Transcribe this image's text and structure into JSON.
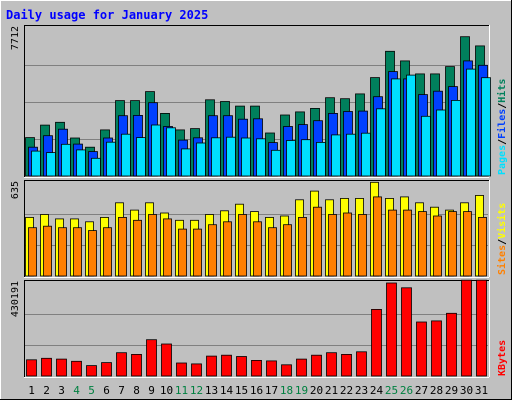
{
  "title": "Daily usage for January 2025",
  "colors": {
    "background": "#c0c0c0",
    "panel": "#c0c0c0",
    "title": "#0000ff",
    "hits": "#00805c",
    "files": "#0040ff",
    "pages": "#00e0ff",
    "visits": "#ffff00",
    "sites": "#ff8000",
    "kbytes": "#ff0000",
    "weekend_label": "#008040",
    "weekday_label": "#000000"
  },
  "chart_data": [
    {
      "type": "bar",
      "panel": "hits-files-pages",
      "max_label": "7712",
      "ymax": 7712,
      "legend": [
        {
          "text": "Pages",
          "key": "pages"
        },
        {
          "text": "/",
          "key": "sep"
        },
        {
          "text": "Files",
          "key": "files"
        },
        {
          "text": "/",
          "key": "sep"
        },
        {
          "text": "Hits",
          "key": "hits"
        }
      ],
      "series": [
        {
          "name": "Hits",
          "key": "hits",
          "values": [
            2000,
            2650,
            2800,
            1980,
            1500,
            2400,
            3930,
            3930,
            4400,
            3260,
            2400,
            2470,
            3970,
            3880,
            3640,
            3640,
            2240,
            3180,
            3340,
            3520,
            4080,
            4030,
            4280,
            5130,
            6500,
            6000,
            5320,
            5320,
            5700,
            7260,
            6780
          ]
        },
        {
          "name": "Files",
          "key": "files",
          "values": [
            1500,
            2100,
            2440,
            1660,
            1270,
            1980,
            3140,
            3160,
            3820,
            2580,
            1870,
            1990,
            3140,
            3140,
            2960,
            2980,
            1740,
            2580,
            2680,
            2880,
            3260,
            3360,
            3380,
            4130,
            5440,
            5060,
            4240,
            4420,
            4660,
            6000,
            5770
          ]
        },
        {
          "name": "Pages",
          "key": "pages",
          "values": [
            1300,
            1220,
            1650,
            1360,
            920,
            1760,
            2180,
            2000,
            2660,
            2510,
            1410,
            1720,
            1990,
            2020,
            1980,
            1940,
            1340,
            1850,
            1890,
            1750,
            2140,
            2180,
            2230,
            3500,
            5060,
            5260,
            3110,
            3440,
            3940,
            5570,
            5120
          ]
        }
      ]
    },
    {
      "type": "bar",
      "panel": "visits-sites",
      "max_label": "635",
      "ymax": 635,
      "legend": [
        {
          "text": "Sites",
          "key": "sites"
        },
        {
          "text": "/",
          "key": "sep"
        },
        {
          "text": "Visits",
          "key": "visits"
        }
      ],
      "series": [
        {
          "name": "Visits",
          "key": "visits",
          "values": [
            400,
            420,
            390,
            390,
            370,
            400,
            500,
            450,
            500,
            430,
            380,
            380,
            420,
            445,
            490,
            440,
            400,
            410,
            520,
            580,
            520,
            530,
            530,
            640,
            530,
            540,
            500,
            470,
            450,
            500,
            550
          ]
        },
        {
          "name": "Sites",
          "key": "sites",
          "values": [
            330,
            340,
            330,
            330,
            310,
            330,
            400,
            380,
            420,
            390,
            320,
            320,
            350,
            370,
            420,
            370,
            330,
            350,
            400,
            470,
            420,
            430,
            420,
            540,
            450,
            450,
            440,
            410,
            440,
            440,
            400
          ]
        }
      ]
    },
    {
      "type": "bar",
      "panel": "kbytes",
      "max_label": "430191",
      "ymax": 430191,
      "legend": [
        {
          "text": "KBytes",
          "key": "kbytes"
        }
      ],
      "series": [
        {
          "name": "KBytes",
          "key": "kbytes",
          "values": [
            75000,
            82000,
            78000,
            68000,
            48000,
            62000,
            108000,
            100000,
            168000,
            148000,
            60000,
            56000,
            92000,
            96000,
            90000,
            72000,
            70000,
            52000,
            78000,
            96000,
            108000,
            100000,
            112000,
            308000,
            430000,
            408000,
            250000,
            255000,
            290000,
            443000,
            443000
          ]
        }
      ]
    }
  ],
  "days": [
    "1",
    "2",
    "3",
    "4",
    "5",
    "6",
    "7",
    "8",
    "9",
    "10",
    "11",
    "12",
    "13",
    "14",
    "15",
    "16",
    "17",
    "18",
    "19",
    "20",
    "21",
    "22",
    "23",
    "24",
    "25",
    "26",
    "27",
    "28",
    "29",
    "30",
    "31"
  ],
  "weekend_days": [
    "4",
    "5",
    "11",
    "12",
    "18",
    "19",
    "25",
    "26"
  ]
}
